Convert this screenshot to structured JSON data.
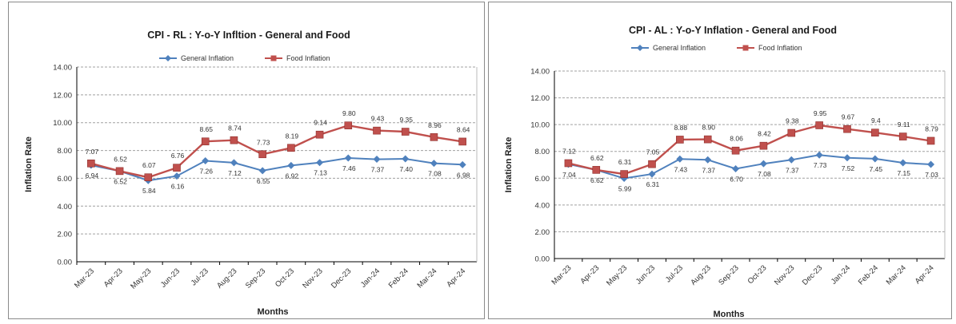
{
  "chart_data": [
    {
      "type": "line",
      "title": "CPI - RL : Y-o-Y Infltion - General and Food",
      "xlabel": "Months",
      "ylabel": "Inflation Rate",
      "ylim": [
        0,
        14
      ],
      "yticks": [
        "0.00",
        "2.00",
        "4.00",
        "6.00",
        "8.00",
        "10.00",
        "12.00",
        "14.00"
      ],
      "grid": true,
      "legend_position": "top",
      "categories": [
        "Mar-23",
        "Apr-23",
        "May-23",
        "Jun-23",
        "Jul-23",
        "Aug-23",
        "Sep-23",
        "Oct-23",
        "Nov-23",
        "Dec-23",
        "Jan-24",
        "Feb-24",
        "Mar-24",
        "Apr-24"
      ],
      "series": [
        {
          "name": "General Inflation",
          "color": "#4f81bd",
          "marker": "diamond",
          "values": [
            6.94,
            6.52,
            5.84,
            6.16,
            7.26,
            7.12,
            6.55,
            6.92,
            7.13,
            7.46,
            7.37,
            7.4,
            7.08,
            6.98
          ],
          "labels": [
            "6.94",
            "6.52",
            "5.84",
            "6.16",
            "7.26",
            "7.12",
            "6.55",
            "6.92",
            "7.13",
            "7.46",
            "7.37",
            "7.40",
            "7.08",
            "6.98"
          ]
        },
        {
          "name": "Food Inflation",
          "color": "#c0504d",
          "marker": "square",
          "values": [
            7.07,
            6.52,
            6.07,
            6.76,
            8.65,
            8.74,
            7.73,
            8.19,
            9.14,
            9.8,
            9.43,
            9.35,
            8.96,
            8.64
          ],
          "labels": [
            "7.07",
            "6.52",
            "6.07",
            "6.76",
            "8.65",
            "8.74",
            "7.73",
            "8.19",
            "9.14",
            "9.80",
            "9.43",
            "9.35",
            "8.96",
            "8.64"
          ]
        }
      ]
    },
    {
      "type": "line",
      "title": "CPI - AL : Y-o-Y Inflation - General and Food",
      "xlabel": "Months",
      "ylabel": "Inflation Rate",
      "ylim": [
        0,
        14
      ],
      "yticks": [
        "0.00",
        "2.00",
        "4.00",
        "6.00",
        "8.00",
        "10.00",
        "12.00",
        "14.00"
      ],
      "grid": true,
      "legend_position": "top",
      "categories": [
        "Mar-23",
        "Apr-23",
        "May-23",
        "Jun-23",
        "Jul-23",
        "Aug-23",
        "Sep-23",
        "Oct-23",
        "Nov-23",
        "Dec-23",
        "Jan-24",
        "Feb-24",
        "Mar-24",
        "Apr-24"
      ],
      "series": [
        {
          "name": "General Inflation",
          "color": "#4f81bd",
          "marker": "diamond",
          "values": [
            7.04,
            6.62,
            5.99,
            6.31,
            7.43,
            7.37,
            6.7,
            7.08,
            7.37,
            7.73,
            7.52,
            7.45,
            7.15,
            7.03
          ],
          "labels": [
            "7.04",
            "6.62",
            "5.99",
            "6.31",
            "7.43",
            "7.37",
            "6.70",
            "7.08",
            "7.37",
            "7.73",
            "7.52",
            "7.45",
            "7.15",
            "7.03"
          ]
        },
        {
          "name": "Food Inflation",
          "color": "#c0504d",
          "marker": "square",
          "values": [
            7.12,
            6.62,
            6.31,
            7.05,
            8.88,
            8.9,
            8.06,
            8.42,
            9.38,
            9.95,
            9.67,
            9.4,
            9.11,
            8.79
          ],
          "labels": [
            "7.12",
            "6.62",
            "6.31",
            "7.05",
            "8.88",
            "8.90",
            "8.06",
            "8.42",
            "9.38",
            "9.95",
            "9.67",
            "9.4",
            "9.11",
            "8.79"
          ]
        }
      ]
    }
  ]
}
